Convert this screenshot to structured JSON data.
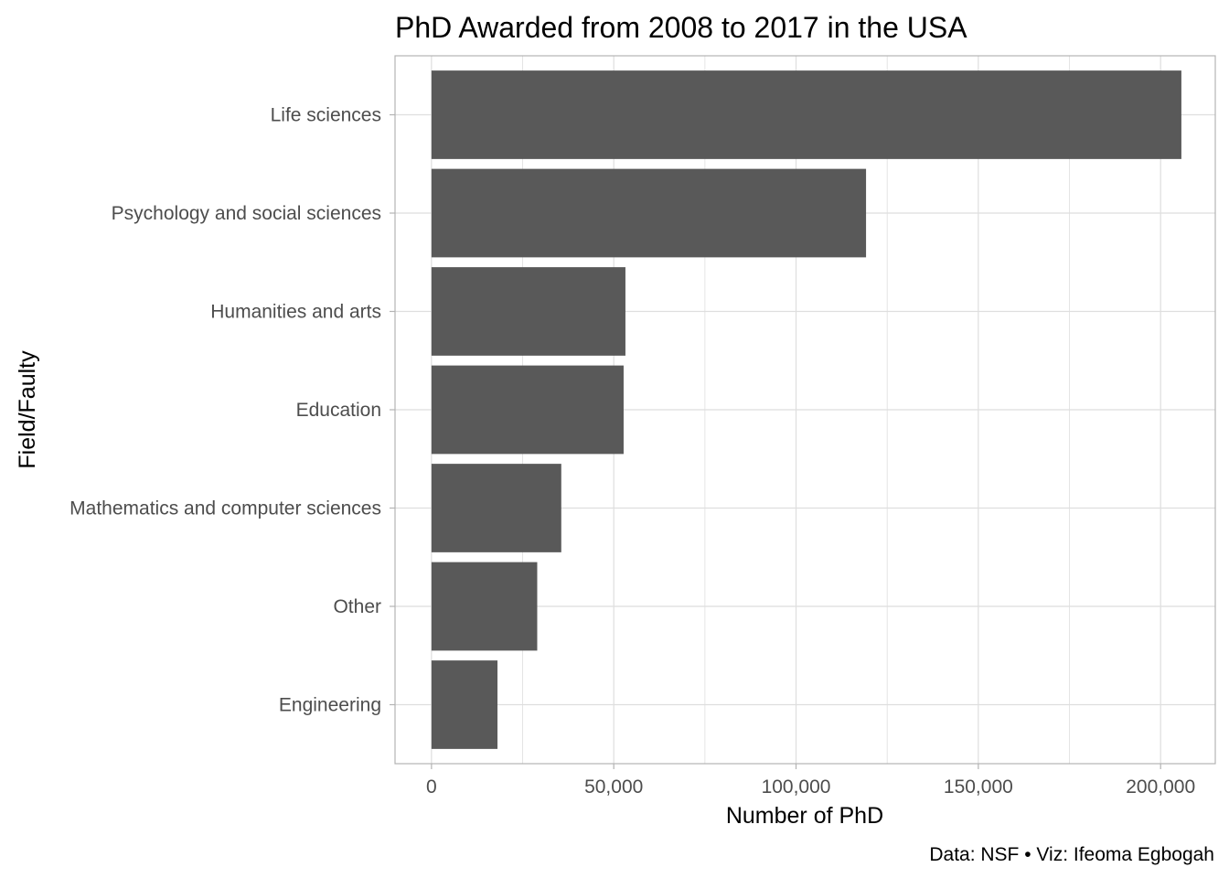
{
  "chart_data": {
    "type": "bar",
    "orientation": "horizontal",
    "title": "PhD Awarded from 2008 to 2017 in the USA",
    "xlabel": "Number of PhD",
    "ylabel": "Field/Faulty",
    "caption": "Data: NSF • Viz: Ifeoma Egbogah",
    "categories": [
      "Life sciences",
      "Psychology and social sciences",
      "Humanities and arts",
      "Education",
      "Mathematics and computer sciences",
      "Other",
      "Engineering"
    ],
    "values": [
      205700,
      119200,
      53200,
      52700,
      35600,
      29000,
      18100
    ],
    "xlim": [
      -10000,
      215000
    ],
    "xticks": [
      0,
      50000,
      100000,
      150000,
      200000
    ],
    "xtick_labels": [
      "0",
      "50,000",
      "100,000",
      "150,000",
      "200,000"
    ],
    "grid": true,
    "legend": "none",
    "colors": {
      "bar": "#595959",
      "grid": "#dedede",
      "panel_border": "#b3b3b3",
      "tick_label": "#4d4d4d"
    }
  }
}
